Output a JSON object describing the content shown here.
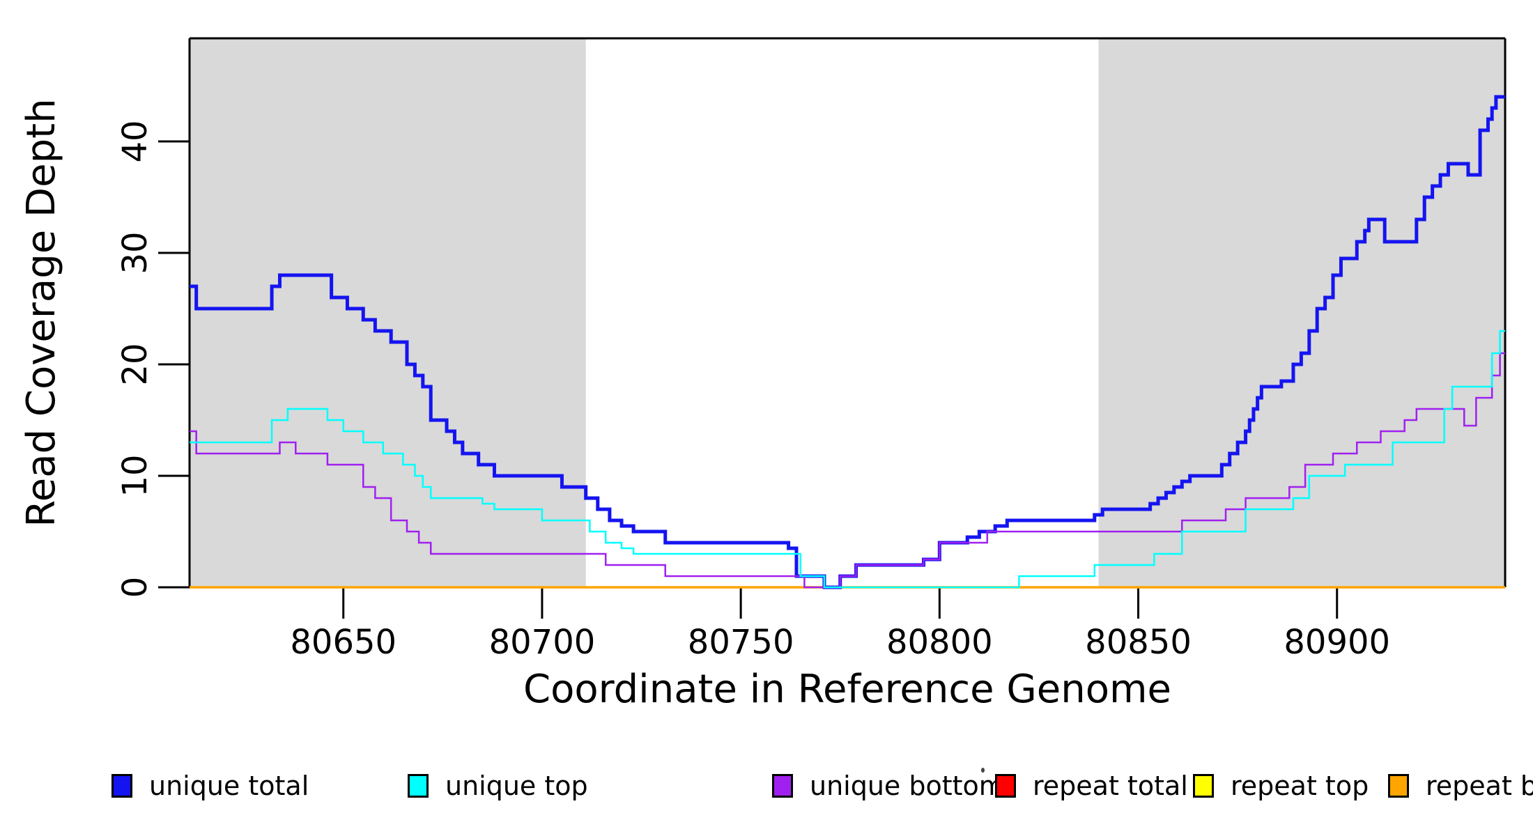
{
  "figure": {
    "background": "#ffffff"
  },
  "x_axis": {
    "title": "Coordinate in Reference Genome",
    "ticks": [
      80650,
      80700,
      80750,
      80800,
      80850,
      80900
    ],
    "range": [
      80611.3,
      80942.3
    ]
  },
  "y_axis": {
    "title": "Read Coverage Depth",
    "ticks": [
      0,
      10,
      20,
      30,
      40
    ],
    "range": [
      0,
      49.25
    ]
  },
  "legend": {
    "items": [
      {
        "label": "unique total",
        "color": "#1414f0"
      },
      {
        "label": "unique top",
        "color": "#00ffff"
      },
      {
        "label": "unique bottom",
        "color": "#a020f0"
      },
      {
        "label": "repeat total",
        "color": "#ff0000"
      },
      {
        "label": "repeat top",
        "color": "#ffff00"
      },
      {
        "label": "repeat bottom",
        "color": "#ffa500"
      }
    ]
  },
  "chart_data": {
    "type": "line",
    "step": true,
    "title": "",
    "xlabel": "Coordinate in Reference Genome",
    "ylabel": "Read Coverage Depth",
    "xlim": [
      80611.3,
      80942.3
    ],
    "ylim": [
      0,
      49.25
    ],
    "grid": false,
    "legend_position": "bottom",
    "shaded_regions": [
      {
        "from": 80611.3,
        "to": 80711,
        "color": "#d9d9d9"
      },
      {
        "from": 80840,
        "to": 80942.3,
        "color": "#d9d9d9"
      }
    ],
    "series": [
      {
        "name": "repeat total",
        "color": "#ff0000",
        "width": 2,
        "points": [
          [
            80611.3,
            0
          ]
        ]
      },
      {
        "name": "repeat top",
        "color": "#ffff00",
        "width": 2,
        "points": [
          [
            80611.3,
            0
          ]
        ]
      },
      {
        "name": "repeat bottom",
        "color": "#ffa500",
        "width": 3.5,
        "points": [
          [
            80611.3,
            0
          ]
        ]
      },
      {
        "name": "unique total",
        "color": "#1414f0",
        "width": 5,
        "points": [
          [
            80611.3,
            27
          ],
          [
            80613,
            25
          ],
          [
            80632,
            27
          ],
          [
            80634,
            28
          ],
          [
            80647,
            26
          ],
          [
            80651,
            25
          ],
          [
            80655,
            24
          ],
          [
            80658,
            23
          ],
          [
            80662,
            22
          ],
          [
            80666,
            20
          ],
          [
            80668,
            19
          ],
          [
            80670,
            18
          ],
          [
            80672,
            15
          ],
          [
            80676,
            14
          ],
          [
            80678,
            13
          ],
          [
            80680,
            12
          ],
          [
            80684,
            11
          ],
          [
            80688,
            10
          ],
          [
            80705,
            9
          ],
          [
            80711,
            8
          ],
          [
            80714,
            7
          ],
          [
            80717,
            6
          ],
          [
            80720,
            5.5
          ],
          [
            80723,
            5
          ],
          [
            80731,
            4
          ],
          [
            80762,
            3.5
          ],
          [
            80764,
            1
          ],
          [
            80771,
            0
          ],
          [
            80775,
            1
          ],
          [
            80779,
            2
          ],
          [
            80796,
            2.5
          ],
          [
            80800,
            4
          ],
          [
            80807,
            4.5
          ],
          [
            80810,
            5
          ],
          [
            80814,
            5.5
          ],
          [
            80817,
            6
          ],
          [
            80839,
            6.5
          ],
          [
            80841,
            7
          ],
          [
            80853,
            7.5
          ],
          [
            80855,
            8
          ],
          [
            80857,
            8.5
          ],
          [
            80859,
            9
          ],
          [
            80861,
            9.5
          ],
          [
            80863,
            10
          ],
          [
            80871,
            11
          ],
          [
            80873,
            12
          ],
          [
            80875,
            13
          ],
          [
            80877,
            14
          ],
          [
            80878,
            15
          ],
          [
            80879,
            16
          ],
          [
            80880,
            17
          ],
          [
            80881,
            18
          ],
          [
            80886,
            18.5
          ],
          [
            80889,
            20
          ],
          [
            80891,
            21
          ],
          [
            80893,
            23
          ],
          [
            80895,
            25
          ],
          [
            80897,
            26
          ],
          [
            80899,
            28
          ],
          [
            80901,
            29.5
          ],
          [
            80905,
            31
          ],
          [
            80907,
            32
          ],
          [
            80908,
            33
          ],
          [
            80912,
            31
          ],
          [
            80920,
            33
          ],
          [
            80922,
            35
          ],
          [
            80924,
            36
          ],
          [
            80926,
            37
          ],
          [
            80928,
            38
          ],
          [
            80933,
            37
          ],
          [
            80936,
            41
          ],
          [
            80938,
            42
          ],
          [
            80939,
            43
          ],
          [
            80940,
            44
          ]
        ]
      },
      {
        "name": "unique bottom",
        "color": "#a020f0",
        "width": 2.5,
        "points": [
          [
            80611.3,
            14
          ],
          [
            80613,
            12
          ],
          [
            80634,
            13
          ],
          [
            80638,
            12
          ],
          [
            80646,
            11
          ],
          [
            80655,
            9
          ],
          [
            80658,
            8
          ],
          [
            80662,
            6
          ],
          [
            80666,
            5
          ],
          [
            80669,
            4
          ],
          [
            80672,
            3
          ],
          [
            80716,
            2
          ],
          [
            80731,
            1
          ],
          [
            80766,
            0
          ],
          [
            80775,
            1
          ],
          [
            80779,
            2
          ],
          [
            80796,
            2.5
          ],
          [
            80800,
            4
          ],
          [
            80812,
            5
          ],
          [
            80861,
            6
          ],
          [
            80872,
            7
          ],
          [
            80877,
            8
          ],
          [
            80888,
            9
          ],
          [
            80892,
            11
          ],
          [
            80899,
            12
          ],
          [
            80905,
            13
          ],
          [
            80911,
            14
          ],
          [
            80917,
            15
          ],
          [
            80920,
            16
          ],
          [
            80932,
            14.5
          ],
          [
            80935,
            17
          ],
          [
            80939,
            19
          ],
          [
            80941,
            21
          ]
        ]
      },
      {
        "name": "unique top",
        "color": "#00ffff",
        "width": 2.5,
        "points": [
          [
            80611.3,
            13
          ],
          [
            80632,
            15
          ],
          [
            80636,
            16
          ],
          [
            80646,
            15
          ],
          [
            80650,
            14
          ],
          [
            80655,
            13
          ],
          [
            80660,
            12
          ],
          [
            80665,
            11
          ],
          [
            80668,
            10
          ],
          [
            80670,
            9
          ],
          [
            80672,
            8
          ],
          [
            80685,
            7.5
          ],
          [
            80688,
            7
          ],
          [
            80700,
            6
          ],
          [
            80712,
            5
          ],
          [
            80716,
            4
          ],
          [
            80720,
            3.5
          ],
          [
            80723,
            3
          ],
          [
            80765,
            1
          ],
          [
            80771,
            0
          ],
          [
            80820,
            1
          ],
          [
            80839,
            2
          ],
          [
            80854,
            3
          ],
          [
            80861,
            5
          ],
          [
            80877,
            7
          ],
          [
            80889,
            8
          ],
          [
            80893,
            10
          ],
          [
            80902,
            11
          ],
          [
            80914,
            13
          ],
          [
            80927,
            16
          ],
          [
            80929,
            18
          ],
          [
            80939,
            21
          ],
          [
            80941,
            23
          ]
        ]
      }
    ]
  }
}
